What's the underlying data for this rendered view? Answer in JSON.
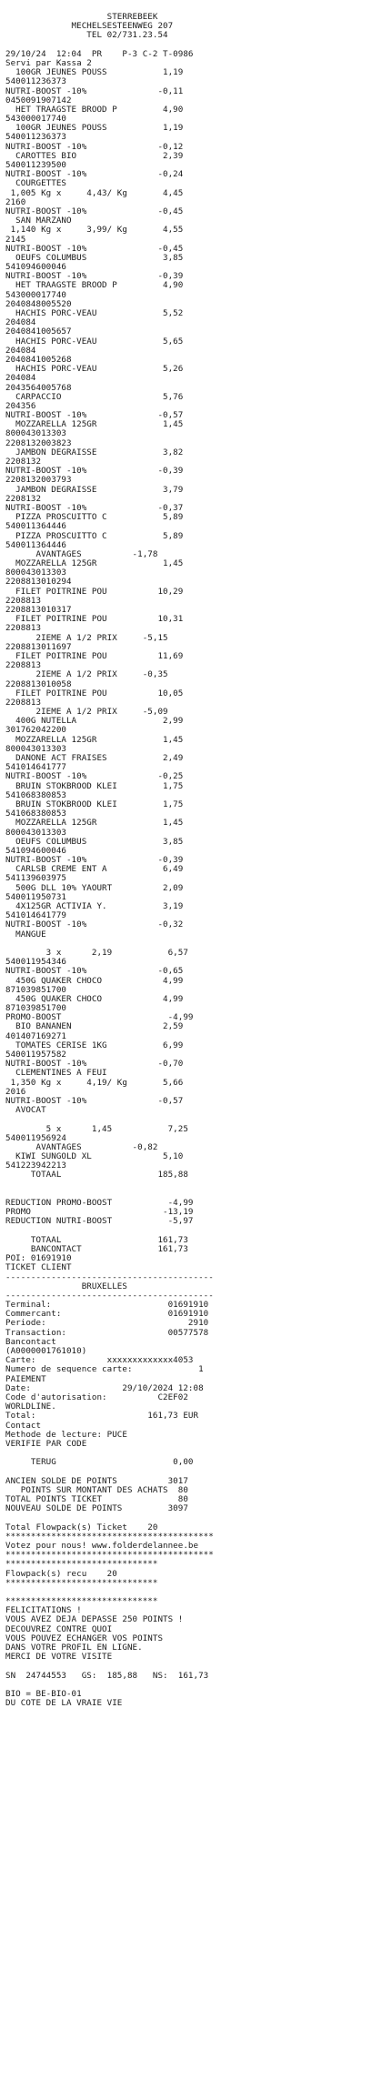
{
  "receipt": {
    "lines": [
      "                    STERREBEEK",
      "             MECHELSESTEENWEG 207",
      "                TEL 02/731.23.54",
      "",
      "29/10/24  12:04  PR    P-3 C-2 T-0986",
      "Servi par Kassa 2",
      "  100GR JEUNES POUSS           1,19",
      "540011236373",
      "NUTRI-BOOST -10%              -0,11",
      "0450091907142",
      "  HET TRAAGSTE BROOD P         4,90",
      "543000017740",
      "  100GR JEUNES POUSS           1,19",
      "540011236373",
      "NUTRI-BOOST -10%              -0,12",
      "  CAROTTES BIO                 2,39",
      "540011239500",
      "NUTRI-BOOST -10%              -0,24",
      "  COURGETTES",
      " 1,005 Kg x     4,43/ Kg       4,45",
      "2160",
      "NUTRI-BOOST -10%              -0,45",
      "  SAN MARZANO",
      " 1,140 Kg x     3,99/ Kg       4,55",
      "2145",
      "NUTRI-BOOST -10%              -0,45",
      "  OEUFS COLUMBUS               3,85",
      "541094600046",
      "NUTRI-BOOST -10%              -0,39",
      "  HET TRAAGSTE BROOD P         4,90",
      "543000017740",
      "2040848005520",
      "  HACHIS PORC-VEAU             5,52",
      "204084",
      "2040841005657",
      "  HACHIS PORC-VEAU             5,65",
      "204084",
      "2040841005268",
      "  HACHIS PORC-VEAU             5,26",
      "204084",
      "2043564005768",
      "  CARPACCIO                    5,76",
      "204356",
      "NUTRI-BOOST -10%              -0,57",
      "  MOZZARELLA 125GR             1,45",
      "800043013303",
      "2208132003823",
      "  JAMBON DEGRAISSE             3,82",
      "2208132",
      "NUTRI-BOOST -10%              -0,39",
      "2208132003793",
      "  JAMBON DEGRAISSE             3,79",
      "2208132",
      "NUTRI-BOOST -10%              -0,37",
      "  PIZZA PROSCUITTO C           5,89",
      "540011364446",
      "  PIZZA PROSCUITTO C           5,89",
      "540011364446",
      "      AVANTAGES          -1,78",
      "  MOZZARELLA 125GR             1,45",
      "800043013303",
      "2208813010294",
      "  FILET POITRINE POU          10,29",
      "2208813",
      "2208813010317",
      "  FILET POITRINE POU          10,31",
      "2208813",
      "      2IEME A 1/2 PRIX     -5,15",
      "2208813011697",
      "  FILET POITRINE POU          11,69",
      "2208813",
      "      2IEME A 1/2 PRIX     -0,35",
      "2208813010058",
      "  FILET POITRINE POU          10,05",
      "2208813",
      "      2IEME A 1/2 PRIX     -5,09",
      "  400G NUTELLA                 2,99",
      "301762042200",
      "  MOZZARELLA 125GR             1,45",
      "800043013303",
      "  DANONE ACT FRAISES           2,49",
      "541014641777",
      "NUTRI-BOOST -10%              -0,25",
      "  BRUIN STOKBROOD KLEI         1,75",
      "541068380853",
      "  BRUIN STOKBROOD KLEI         1,75",
      "541068380853",
      "  MOZZARELLA 125GR             1,45",
      "800043013303",
      "  OEUFS COLUMBUS               3,85",
      "541094600046",
      "NUTRI-BOOST -10%              -0,39",
      "  CARLSB CREME ENT A           6,49",
      "541139603975",
      "  500G DLL 10% YAOURT          2,09",
      "540011950731",
      "  4X125GR ACTIVIA Y.           3,19",
      "541014641779",
      "NUTRI-BOOST -10%              -0,32",
      "  MANGUE",
      "",
      "        3 x      2,19           6,57",
      "540011954346",
      "NUTRI-BOOST -10%              -0,65",
      "  450G QUAKER CHOCO            4,99",
      "871039851700",
      "  450G QUAKER CHOCO            4,99",
      "871039851700",
      "PROMO-BOOST                     -4,99",
      "  BIO BANANEN                  2,59",
      "401407169271",
      "  TOMATES CERISE 1KG           6,99",
      "540011957582",
      "NUTRI-BOOST -10%              -0,70",
      "  CLEMENTINES A FEUI",
      " 1,350 Kg x     4,19/ Kg       5,66",
      "2016",
      "NUTRI-BOOST -10%              -0,57",
      "  AVOCAT",
      "",
      "        5 x      1,45           7,25",
      "540011956924",
      "      AVANTAGES          -0,82",
      "  KIWI SUNGOLD XL              5,10",
      "541223942213",
      "     TOTAAL                   185,88",
      "",
      "",
      "REDUCTION PROMO-BOOST           -4,99",
      "PROMO                          -13,19",
      "REDUCTION NUTRI-BOOST           -5,97",
      "",
      "     TOTAAL                   161,73",
      "     BANCONTACT               161,73",
      "POI: 01691910",
      "TICKET CLIENT",
      "-----------------------------------------",
      "               BRUXELLES",
      "-----------------------------------------",
      "Terminal:                       01691910",
      "Commercant:                     01691910",
      "Periode:                            2910",
      "Transaction:                    00577578",
      "Bancontact",
      "(A0000001761010)",
      "Carte:              xxxxxxxxxxxxx4053",
      "Numero de sequence carte:             1",
      "PAIEMENT",
      "Date:                  29/10/2024 12:08",
      "Code d'autorisation:          C2EF02",
      "WORLDLINE.",
      "Total:                      161,73 EUR",
      "Contact",
      "Methode de lecture: PUCE",
      "VERIFIE PAR CODE",
      "",
      "     TERUG                       0,00",
      "",
      "ANCIEN SOLDE DE POINTS          3017",
      "   POINTS SUR MONTANT DES ACHATS  80",
      "TOTAL POINTS TICKET               80",
      "NOUVEAU SOLDE DE POINTS         3097",
      "",
      "Total Flowpack(s) Ticket    20",
      "*****************************************",
      "Votez pour nous! www.folderdelannee.be",
      "*****************************************",
      "******************************",
      "Flowpack(s) recu    20",
      "******************************",
      "",
      "******************************",
      "FELICITATIONS !",
      "VOUS AVEZ DEJA DEPASSE 250 POINTS !",
      "DECOUVREZ CONTRE QUOI",
      "VOUS POUVEZ ECHANGER VOS POINTS",
      "DANS VOTRE PROFIL EN LIGNE.",
      "MERCI DE VOTRE VISITE",
      "",
      "SN  24744553   GS:  185,88   NS:  161,73",
      "",
      "BIO = BE-BIO-01",
      "DU COTE DE LA VRAIE VIE"
    ]
  }
}
